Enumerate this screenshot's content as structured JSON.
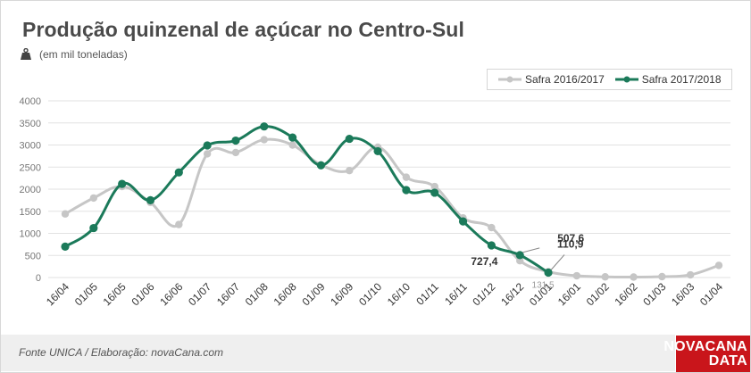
{
  "header": {
    "title": "Produção quinzenal de açúcar no Centro-Sul",
    "unit": "(em mil toneladas)"
  },
  "footer": {
    "source": "Fonte UNICA / Elaboração: novaCana.com",
    "brand_line1": "NOVACANA",
    "brand_line2": "DATA"
  },
  "colors": {
    "series_2016": "#c6c6c6",
    "series_2017": "#1b7a5a",
    "grid": "#e2e2e2",
    "brand": "#c9151b"
  },
  "chart_data": {
    "type": "line",
    "categories": [
      "16/04",
      "01/05",
      "16/05",
      "01/06",
      "16/06",
      "01/07",
      "16/07",
      "01/08",
      "16/08",
      "01/09",
      "16/09",
      "01/10",
      "16/10",
      "01/11",
      "16/11",
      "01/12",
      "16/12",
      "01/01",
      "16/01",
      "01/02",
      "16/02",
      "01/03",
      "16/03",
      "01/04"
    ],
    "yticks": [
      "0",
      "500",
      "1000",
      "1500",
      "2000",
      "2500",
      "3000",
      "3500",
      "4000"
    ],
    "ylim": [
      0,
      4000
    ],
    "grid": true,
    "legend_position": "top-right",
    "series": [
      {
        "name": "Safra 2016/2017",
        "values": [
          1440,
          1800,
          2060,
          1700,
          1200,
          2800,
          2830,
          3120,
          3000,
          2550,
          2420,
          2950,
          2270,
          2060,
          1350,
          1130,
          380,
          131.5,
          40,
          15,
          10,
          20,
          60,
          275
        ]
      },
      {
        "name": "Safra 2017/2018",
        "values": [
          700,
          1120,
          2120,
          1750,
          2380,
          2990,
          3100,
          3420,
          3170,
          2540,
          3140,
          2860,
          1980,
          1920,
          1270,
          727.4,
          507.6,
          110.9,
          null,
          null,
          null,
          null,
          null,
          null
        ]
      }
    ],
    "annotations": [
      {
        "text": "727,4",
        "series": 1,
        "index": 15
      },
      {
        "text": "507,6",
        "series": 1,
        "index": 16
      },
      {
        "text": "110,9",
        "series": 1,
        "index": 17
      },
      {
        "text": "131,5",
        "series": 0,
        "index": 17
      }
    ]
  }
}
